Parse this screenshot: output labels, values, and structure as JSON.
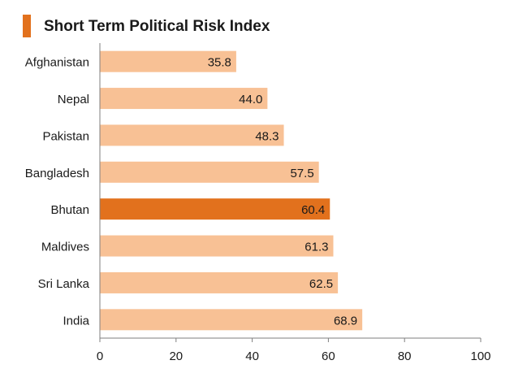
{
  "title": "Short Term Political Risk Index",
  "colors": {
    "accent": "#e2711d",
    "bar": "#f8c195",
    "highlight_bar": "#e2711d",
    "axis": "#7f7f7f"
  },
  "chart_data": {
    "type": "bar",
    "orientation": "horizontal",
    "title": "Short Term Political Risk Index",
    "categories": [
      "Afghanistan",
      "Nepal",
      "Pakistan",
      "Bangladesh",
      "Bhutan",
      "Maldives",
      "Sri Lanka",
      "India"
    ],
    "values": [
      35.8,
      44.0,
      48.3,
      57.5,
      60.4,
      61.3,
      62.5,
      68.9
    ],
    "data_labels": [
      "35.8",
      "44.0",
      "48.3",
      "57.5",
      "60.4",
      "61.3",
      "62.5",
      "68.9"
    ],
    "highlighted_category": "Bhutan",
    "xlabel": "",
    "ylabel": "",
    "xlim": [
      0,
      100
    ],
    "xticks": [
      0,
      20,
      40,
      60,
      80,
      100
    ],
    "grid": false,
    "legend": "none"
  }
}
